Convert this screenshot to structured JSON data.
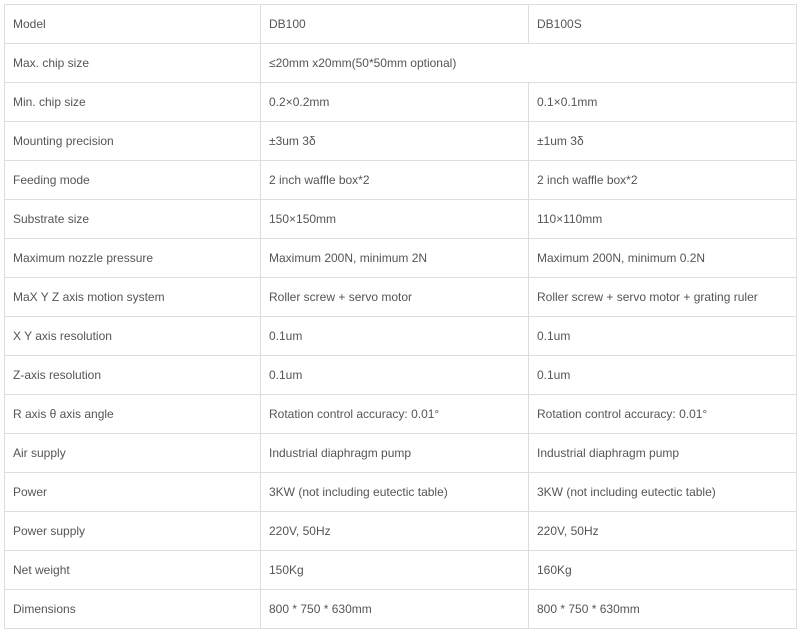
{
  "table": {
    "type": "table",
    "background_color": "#ffffff",
    "border_color": "#dddddd",
    "text_color": "#555555",
    "font_size": 12,
    "columns": [
      "Model",
      "DB100",
      "DB100S"
    ],
    "header": {
      "c0": "Model",
      "c1": "DB100",
      "c2": "DB100S"
    },
    "rows": {
      "r1": {
        "c0": "Max. chip size",
        "c1": "≤20mm x20mm(50*50mm optional)"
      },
      "r2": {
        "c0": "Min. chip size",
        "c1": "0.2×0.2mm",
        "c2": "0.1×0.1mm"
      },
      "r3": {
        "c0": "Mounting precision",
        "c1": "±3um 3δ",
        "c2": "±1um 3δ"
      },
      "r4": {
        "c0": "Feeding mode",
        "c1": "2 inch waffle box*2",
        "c2": "2 inch waffle box*2"
      },
      "r5": {
        "c0": "Substrate size",
        "c1": "150×150mm",
        "c2": "110×110mm"
      },
      "r6": {
        "c0": "Maximum nozzle pressure",
        "c1": "Maximum 200N, minimum 2N",
        "c2": "Maximum 200N, minimum 0.2N"
      },
      "r7": {
        "c0": "MaX Y Z axis motion system",
        "c1": "Roller screw + servo motor",
        "c2": "Roller screw + servo motor + grating ruler"
      },
      "r8": {
        "c0": "X Y axis resolution",
        "c1": "0.1um",
        "c2": "0.1um"
      },
      "r9": {
        "c0": "Z-axis resolution",
        "c1": "0.1um",
        "c2": "0.1um"
      },
      "r10": {
        "c0": "R axis θ axis angle",
        "c1": "Rotation control accuracy: 0.01°",
        "c2": "Rotation control accuracy: 0.01°"
      },
      "r11": {
        "c0": "Air supply",
        "c1": "Industrial diaphragm pump",
        "c2": "Industrial diaphragm pump"
      },
      "r12": {
        "c0": "Power",
        "c1": "3KW (not including eutectic table)",
        "c2": "3KW (not including eutectic table)"
      },
      "r13": {
        "c0": "Power supply",
        "c1": "220V, 50Hz",
        "c2": "220V, 50Hz"
      },
      "r14": {
        "c0": "Net weight",
        "c1": "150Kg",
        "c2": "160Kg"
      },
      "r15": {
        "c0": "Dimensions",
        "c1": "800 * 750 * 630mm",
        "c2": "800 * 750 * 630mm"
      }
    }
  }
}
